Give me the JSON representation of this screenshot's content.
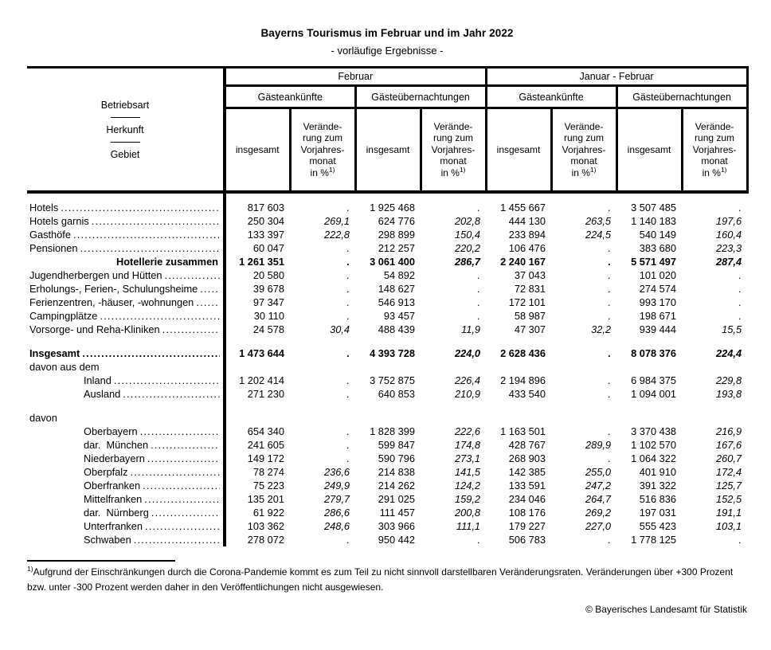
{
  "title": "Bayerns Tourismus im Februar und im Jahr 2022",
  "subtitle": "- vorläufige Ergebnisse -",
  "table": {
    "row_header": {
      "line1": "Betriebsart",
      "line2": "Herkunft",
      "line3": "Gebiet"
    },
    "header": {
      "group_february": "Februar",
      "group_jan_feb": "Januar - Februar",
      "sub_arrivals": "Gästeankünfte",
      "sub_overnights": "Gästeübernachtungen",
      "col_total": "insgesamt",
      "change_lines": "Verände-\nrung zum\nVorjahres-\nmonat",
      "unit_prefix": "in %",
      "footnote_marker": "1)"
    },
    "rows": [
      {
        "label": "Hotels",
        "style": "normal",
        "indent": false,
        "dots": true,
        "gap_above": false,
        "values": [
          "817 603",
          ".",
          "1 925 468",
          ".",
          "1 455 667",
          ".",
          "3 507 485",
          "."
        ]
      },
      {
        "label": "Hotels garnis",
        "style": "normal",
        "indent": false,
        "dots": true,
        "gap_above": false,
        "values": [
          "250 304",
          "269,1",
          "624 776",
          "202,8",
          "444 130",
          "263,5",
          "1 140 183",
          "197,6"
        ]
      },
      {
        "label": "Gasthöfe",
        "style": "normal",
        "indent": false,
        "dots": true,
        "gap_above": false,
        "values": [
          "133 397",
          "222,8",
          "298 899",
          "150,4",
          "233 894",
          "224,5",
          "540 149",
          "160,4"
        ]
      },
      {
        "label": "Pensionen",
        "style": "normal",
        "indent": false,
        "dots": true,
        "gap_above": false,
        "values": [
          "60 047",
          ".",
          "212 257",
          "220,2",
          "106 476",
          ".",
          "383 680",
          "223,3"
        ]
      },
      {
        "label": "Hotellerie zusammen",
        "style": "bold-right",
        "indent": false,
        "dots": false,
        "gap_above": false,
        "values": [
          "1 261 351",
          ".",
          "3 061 400",
          "286,7",
          "2 240 167",
          ".",
          "5 571 497",
          "287,4"
        ]
      },
      {
        "label": "Jugendherbergen und Hütten",
        "style": "normal",
        "indent": false,
        "dots": true,
        "gap_above": false,
        "values": [
          "20 580",
          ".",
          "54 892",
          ".",
          "37 043",
          ".",
          "101 020",
          "."
        ]
      },
      {
        "label": "Erholungs-, Ferien-, Schulungsheime",
        "style": "normal",
        "indent": false,
        "dots": true,
        "gap_above": false,
        "values": [
          "39 678",
          ".",
          "148 627",
          ".",
          "72 831",
          ".",
          "274 574",
          "."
        ]
      },
      {
        "label": "Ferienzentren, -häuser, -wohnungen",
        "style": "normal",
        "indent": false,
        "dots": true,
        "gap_above": false,
        "values": [
          "97 347",
          ".",
          "546 913",
          ".",
          "172 101",
          ".",
          "993 170",
          "."
        ]
      },
      {
        "label": "Campingplätze",
        "style": "normal",
        "indent": false,
        "dots": true,
        "gap_above": false,
        "values": [
          "30 110",
          ".",
          "93 457",
          ".",
          "58 987",
          ".",
          "198 671",
          "."
        ]
      },
      {
        "label": "Vorsorge- und Reha-Kliniken",
        "style": "normal",
        "indent": false,
        "dots": true,
        "gap_above": false,
        "values": [
          "24 578",
          "30,4",
          "488 439",
          "11,9",
          "47 307",
          "32,2",
          "939 444",
          "15,5"
        ]
      },
      {
        "label": "Insgesamt",
        "style": "bold",
        "indent": false,
        "dots": true,
        "gap_above": true,
        "values": [
          "1 473 644",
          ".",
          "4 393 728",
          "224,0",
          "2 628 436",
          ".",
          "8 078 376",
          "224,4"
        ]
      },
      {
        "label": "davon aus dem",
        "style": "normal",
        "indent": false,
        "dots": false,
        "gap_above": false,
        "values": []
      },
      {
        "label": "Inland",
        "style": "normal",
        "indent": true,
        "dots": true,
        "gap_above": false,
        "values": [
          "1 202 414",
          ".",
          "3 752 875",
          "226,4",
          "2 194 896",
          ".",
          "6 984 375",
          "229,8"
        ]
      },
      {
        "label": "Ausland",
        "style": "normal",
        "indent": true,
        "dots": true,
        "gap_above": false,
        "values": [
          "271 230",
          ".",
          "640 853",
          "210,9",
          "433 540",
          ".",
          "1 094 001",
          "193,8"
        ]
      },
      {
        "label": "davon",
        "style": "normal",
        "indent": false,
        "dots": false,
        "gap_above": true,
        "values": []
      },
      {
        "label": "Oberbayern",
        "style": "normal",
        "indent": true,
        "dots": true,
        "gap_above": false,
        "values": [
          "654 340",
          ".",
          "1 828 399",
          "222,6",
          "1 163 501",
          ".",
          "3 370 438",
          "216,9"
        ]
      },
      {
        "label": "dar.  München",
        "style": "normal",
        "indent": true,
        "dots": true,
        "gap_above": false,
        "values": [
          "241 605",
          ".",
          "599 847",
          "174,8",
          "428 767",
          "289,9",
          "1 102 570",
          "167,6"
        ]
      },
      {
        "label": "Niederbayern",
        "style": "normal",
        "indent": true,
        "dots": true,
        "gap_above": false,
        "values": [
          "149 172",
          ".",
          "590 796",
          "273,1",
          "268 903",
          ".",
          "1 064 322",
          "260,7"
        ]
      },
      {
        "label": "Oberpfalz",
        "style": "normal",
        "indent": true,
        "dots": true,
        "gap_above": false,
        "values": [
          "78 274",
          "236,6",
          "214 838",
          "141,5",
          "142 385",
          "255,0",
          "401 910",
          "172,4"
        ]
      },
      {
        "label": "Oberfranken",
        "style": "normal",
        "indent": true,
        "dots": true,
        "gap_above": false,
        "values": [
          "75 223",
          "249,9",
          "214 262",
          "124,2",
          "133 591",
          "247,2",
          "391 322",
          "125,7"
        ]
      },
      {
        "label": "Mittelfranken",
        "style": "normal",
        "indent": true,
        "dots": true,
        "gap_above": false,
        "values": [
          "135 201",
          "279,7",
          "291 025",
          "159,2",
          "234 046",
          "264,7",
          "516 836",
          "152,5"
        ]
      },
      {
        "label": "dar.  Nürnberg",
        "style": "normal",
        "indent": true,
        "dots": true,
        "gap_above": false,
        "values": [
          "61 922",
          "286,6",
          "111 457",
          "200,8",
          "108 176",
          "269,2",
          "197 031",
          "191,1"
        ]
      },
      {
        "label": "Unterfranken",
        "style": "normal",
        "indent": true,
        "dots": true,
        "gap_above": false,
        "values": [
          "103 362",
          "248,6",
          "303 966",
          "111,1",
          "179 227",
          "227,0",
          "555 423",
          "103,1"
        ]
      },
      {
        "label": "Schwaben",
        "style": "normal",
        "indent": true,
        "dots": true,
        "gap_above": false,
        "values": [
          "278 072",
          ".",
          "950 442",
          ".",
          "506 783",
          ".",
          "1 778 125",
          "."
        ]
      }
    ]
  },
  "footnote": {
    "marker": "1)",
    "text": "Aufgrund der Einschränkungen durch die Corona-Pandemie kommt es zum Teil zu nicht sinnvoll darstellbaren Veränderungsraten. Veränderungen über +300 Prozent bzw. unter -300 Prozent werden daher in den Veröffentlichungen nicht ausgewiesen."
  },
  "copyright": "© Bayerisches Landesamt für Statistik"
}
